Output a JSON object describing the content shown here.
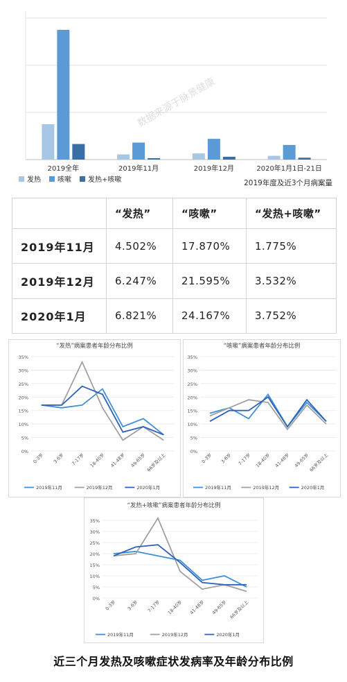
{
  "chart_data": [
    {
      "type": "bar",
      "categories": [
        "2019全年",
        "2019年11月",
        "2019年12月",
        "2020年1月1日-21日"
      ],
      "series": [
        {
          "name": "发热",
          "values": [
            7.5,
            1.1,
            1.3,
            0.8
          ],
          "color": "#a8c6e6"
        },
        {
          "name": "咳嗽",
          "values": [
            27.5,
            3.6,
            4.4,
            3.1
          ],
          "color": "#5b9bd5"
        },
        {
          "name": "发热+咳嗽",
          "values": [
            3.3,
            0.3,
            0.6,
            0.4
          ],
          "color": "#3a6ea5"
        }
      ],
      "ylim": [
        0,
        30
      ],
      "y_gridlines": [
        0,
        10,
        20,
        30
      ],
      "subtitle": "2019年度及近3个月病案量",
      "legend_position": "bottom-left",
      "watermark": "数据来源于脉景健康"
    },
    {
      "type": "table",
      "columns": [
        "",
        "“发热”",
        "“咳嗽”",
        "“发热+咳嗽”"
      ],
      "rows": [
        [
          "2019年11月",
          "4.502%",
          "17.870%",
          "1.775%"
        ],
        [
          "2019年12月",
          "6.247%",
          "21.595%",
          "3.532%"
        ],
        [
          "2020年1月",
          "6.821%",
          "24.167%",
          "3.752%"
        ]
      ]
    },
    {
      "type": "line",
      "title": "“发热”病案患者年龄分布比例",
      "categories": [
        "0-3岁",
        "3-6岁",
        "7-17岁",
        "18-40岁",
        "41-48岁",
        "49-65岁",
        "66岁及以上"
      ],
      "y_ticks": [
        "0%",
        "5%",
        "10%",
        "15%",
        "20%",
        "25%",
        "30%",
        "35%"
      ],
      "ylim": [
        0,
        35
      ],
      "series": [
        {
          "name": "2019年11月",
          "values": [
            17,
            16,
            17,
            23,
            9,
            12,
            6
          ],
          "color": "#3f8fd8"
        },
        {
          "name": "2019年12月",
          "values": [
            17,
            17,
            33,
            16,
            4,
            9,
            4
          ],
          "color": "#a0a0a0"
        },
        {
          "name": "2020年1月",
          "values": [
            17,
            17,
            24,
            21,
            7,
            9,
            6
          ],
          "color": "#2c62b8"
        }
      ]
    },
    {
      "type": "line",
      "title": "“咳嗽”病案患者年龄分布比例",
      "categories": [
        "0-3岁",
        "3-6岁",
        "7-17岁",
        "18-40岁",
        "41-48岁",
        "49-65岁",
        "66岁及以上"
      ],
      "y_ticks": [
        "0%",
        "5%",
        "10%",
        "15%",
        "20%",
        "25%",
        "30%",
        "35%"
      ],
      "ylim": [
        0,
        35
      ],
      "series": [
        {
          "name": "2019年11月",
          "values": [
            14,
            16,
            12,
            21,
            9,
            18,
            11
          ],
          "color": "#3f8fd8"
        },
        {
          "name": "2019年12月",
          "values": [
            13,
            16,
            19,
            18,
            8,
            17,
            10
          ],
          "color": "#a0a0a0"
        },
        {
          "name": "2020年1月",
          "values": [
            11,
            15,
            15,
            20,
            9,
            19,
            11
          ],
          "color": "#2c62b8"
        }
      ]
    },
    {
      "type": "line",
      "title": "“发热+咳嗽”病案患者年龄分布比例",
      "categories": [
        "0-3岁",
        "3-6岁",
        "7-17岁",
        "18-40岁",
        "41-48岁",
        "49-65岁",
        "66岁及以上"
      ],
      "y_ticks": [
        "0%",
        "5%",
        "10%",
        "15%",
        "20%",
        "25%",
        "30%",
        "35%"
      ],
      "ylim": [
        0,
        35
      ],
      "series": [
        {
          "name": "2019年11月",
          "values": [
            20,
            21,
            19,
            17,
            8,
            10,
            5
          ],
          "color": "#3f8fd8"
        },
        {
          "name": "2019年12月",
          "values": [
            19,
            20,
            36,
            12,
            4,
            6,
            3
          ],
          "color": "#a0a0a0"
        },
        {
          "name": "2020年1月",
          "values": [
            19,
            23,
            24,
            16,
            7,
            6,
            6
          ],
          "color": "#2c62b8"
        }
      ]
    }
  ],
  "caption": "近三个月发热及咳嗽症状发病率及年龄分布比例"
}
